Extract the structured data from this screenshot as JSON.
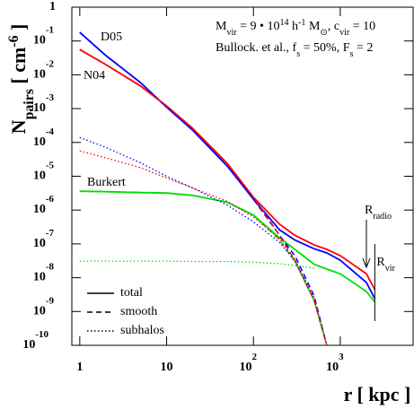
{
  "chart_data": {
    "type": "line",
    "log_x": true,
    "log_y": true,
    "x_label": [
      {
        "text": "r [ kpc ]"
      }
    ],
    "y_label": [
      {
        "text": "N"
      },
      {
        "sub": "pairs"
      },
      {
        "text": " [ cm"
      },
      {
        "sup": "-6"
      },
      {
        "text": " ]"
      }
    ],
    "annotations": [
      [
        {
          "text": "M"
        },
        {
          "sub": "vir"
        },
        {
          "text": " = 9 • 10"
        },
        {
          "sup": "14"
        },
        {
          "text": " h"
        },
        {
          "sup": "-1"
        },
        {
          "text": " M"
        },
        {
          "sub": "⊙"
        },
        {
          "text": ", c"
        },
        {
          "sub": "vir"
        },
        {
          "text": " = 10"
        }
      ],
      [
        {
          "text": "Bullock. et al., f"
        },
        {
          "sub": "s"
        },
        {
          "text": " = 50%, F"
        },
        {
          "sub": "s"
        },
        {
          "text": " = 2"
        }
      ]
    ],
    "xlim": [
      0.81,
      6900
    ],
    "ylim": [
      1e-10,
      1
    ],
    "xticks": [
      1,
      10,
      {
        "value": 100,
        "label": "10",
        "exponent": "2"
      },
      {
        "value": 1000,
        "label": "10",
        "exponent": "3"
      }
    ],
    "yticks": [
      1,
      {
        "value": 0.1,
        "label": "10",
        "exponent": "-1"
      },
      {
        "value": 0.01,
        "label": "10",
        "exponent": "-2"
      },
      {
        "value": 0.001,
        "label": "10",
        "exponent": "-3"
      },
      {
        "value": 0.0001,
        "label": "10",
        "exponent": "-4"
      },
      {
        "value": 1e-05,
        "label": "10",
        "exponent": "-5"
      },
      {
        "value": 1e-06,
        "label": "10",
        "exponent": "-6"
      },
      {
        "value": 1e-07,
        "label": "10",
        "exponent": "-7"
      },
      {
        "value": 1e-08,
        "label": "10",
        "exponent": "-8"
      },
      {
        "value": 1e-09,
        "label": "10",
        "exponent": "-9"
      },
      {
        "value": 1e-10,
        "label": "10",
        "exponent": "-10"
      }
    ],
    "legend": [
      "total",
      "smooth",
      "subhalos"
    ],
    "x": [
      1,
      2,
      5,
      10,
      20,
      50,
      100,
      200,
      300,
      500,
      700,
      1000,
      2000,
      2500
    ],
    "series": [
      {
        "name": "D05",
        "component": "total",
        "color": "#0000ff",
        "values": [
          0.18,
          0.037,
          0.0059,
          0.0011,
          0.00023,
          2e-05,
          2.1e-06,
          2.6e-07,
          1.3e-07,
          7.2e-08,
          5.4e-08,
          3.3e-08,
          7.2e-09,
          2.4e-09
        ]
      },
      {
        "name": "N04",
        "component": "total",
        "color": "#ff0000",
        "values": [
          0.056,
          0.02,
          0.0047,
          0.0012,
          0.00026,
          2.4e-05,
          2.4e-06,
          3.8e-07,
          1.8e-07,
          9.3e-08,
          6.9e-08,
          4.5e-08,
          1.3e-08,
          4.4e-09
        ]
      },
      {
        "name": "Burkert",
        "component": "total",
        "color": "#00dd00",
        "values": [
          3.6e-06,
          3.5e-06,
          3.3e-06,
          3.2e-06,
          2.7e-06,
          1.7e-06,
          7.1e-07,
          1.5e-07,
          6.9e-08,
          2.5e-08,
          1.8e-08,
          1.3e-08,
          3.9e-09,
          1.9e-09
        ]
      },
      {
        "name": "D05",
        "component": "smooth",
        "color": "#0000ff",
        "values": [
          0.18,
          0.037,
          0.0059,
          0.0011,
          0.00023,
          2e-05,
          2.1e-06,
          1.8e-07,
          4.5e-08,
          2.9e-09,
          1e-10,
          null,
          null,
          null
        ]
      },
      {
        "name": "N04",
        "component": "smooth",
        "color": "#ff0000",
        "values": [
          0.056,
          0.02,
          0.0047,
          0.0012,
          0.00026,
          2.4e-05,
          2.4e-06,
          1.8e-07,
          3.3e-08,
          2.1e-09,
          1e-10,
          null,
          null,
          null
        ]
      },
      {
        "name": "Burkert",
        "component": "smooth",
        "color": "#00dd00",
        "values": [
          3.6e-06,
          3.5e-06,
          3.3e-06,
          3.2e-06,
          2.7e-06,
          1.7e-06,
          7.1e-07,
          1.3e-07,
          3e-08,
          2.1e-09,
          1e-10,
          null,
          null,
          null
        ]
      },
      {
        "name": "D05",
        "component": "subhalos",
        "color": "#0000ff",
        "values": [
          0.00014,
          7.1e-05,
          2.5e-05,
          1e-05,
          4.5e-06,
          1.4e-06,
          4.5e-07,
          1.1e-07,
          3.2e-08,
          2.5e-09,
          1e-10,
          null,
          null,
          null
        ]
      },
      {
        "name": "N04",
        "component": "subhalos",
        "color": "#ff0000",
        "values": [
          5.6e-05,
          3.5e-05,
          1.8e-05,
          8.9e-06,
          4.5e-06,
          1.8e-06,
          6.3e-07,
          1.4e-07,
          3.5e-08,
          2.5e-09,
          1e-10,
          null,
          null,
          null
        ]
      },
      {
        "name": "Burkert",
        "component": "subhalos",
        "color": "#00dd00",
        "values": [
          3.1e-08,
          3.1e-08,
          3.1e-08,
          3.1e-08,
          3e-08,
          3e-08,
          2.9e-08,
          2.6e-08,
          2.3e-08,
          1.9e-08,
          null,
          null,
          null,
          null
        ]
      }
    ],
    "markers": [
      {
        "label": "R",
        "sub": "radio",
        "x": 2000,
        "style": "arrow"
      },
      {
        "label": "R",
        "sub": "vir",
        "x": 2500,
        "style": "line"
      }
    ]
  }
}
